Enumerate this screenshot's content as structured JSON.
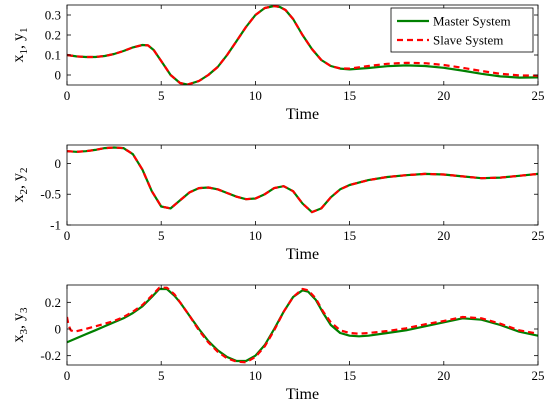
{
  "chart_data": [
    {
      "type": "line",
      "ylabel_parts": [
        "x",
        "1",
        ", y",
        "1"
      ],
      "xlabel": "Time",
      "xlim": [
        0,
        25
      ],
      "ylim": [
        -0.05,
        0.35
      ],
      "xticks": [
        0,
        5,
        10,
        15,
        20,
        25
      ],
      "yticks": [
        0,
        0.1,
        0.2,
        0.3
      ],
      "ytick_labels": [
        "0",
        "0.1",
        "0.2",
        "0.3"
      ],
      "legend": {
        "placement": "top-right"
      },
      "series": [
        {
          "name": "Master System",
          "color": "#008000",
          "style": "solid",
          "x": [
            0,
            0.5,
            1,
            1.5,
            2,
            2.5,
            3,
            3.5,
            4,
            4.3,
            4.6,
            5,
            5.5,
            6,
            6.4,
            7,
            7.5,
            8,
            8.5,
            9,
            9.5,
            10,
            10.5,
            11,
            11.3,
            11.6,
            12,
            12.5,
            13,
            13.5,
            14,
            14.5,
            15,
            16,
            17,
            18,
            19,
            20,
            21,
            22,
            23,
            24,
            25
          ],
          "y": [
            0.1,
            0.093,
            0.09,
            0.09,
            0.095,
            0.105,
            0.12,
            0.138,
            0.15,
            0.148,
            0.125,
            0.07,
            0.0,
            -0.04,
            -0.048,
            -0.03,
            0.0,
            0.04,
            0.1,
            0.17,
            0.24,
            0.3,
            0.335,
            0.345,
            0.34,
            0.325,
            0.28,
            0.2,
            0.13,
            0.075,
            0.045,
            0.032,
            0.028,
            0.035,
            0.044,
            0.048,
            0.045,
            0.036,
            0.022,
            0.006,
            -0.007,
            -0.013,
            -0.012
          ]
        },
        {
          "name": "Slave System",
          "color": "#ff0000",
          "style": "dashed",
          "x": [
            0,
            0.5,
            1,
            1.5,
            2,
            2.5,
            3,
            3.5,
            4,
            4.3,
            4.6,
            5,
            5.5,
            6,
            6.4,
            7,
            7.5,
            8,
            8.5,
            9,
            9.5,
            10,
            10.5,
            11,
            11.3,
            11.6,
            12,
            12.5,
            13,
            13.5,
            14,
            14.5,
            15,
            16,
            17,
            18,
            19,
            20,
            21,
            22,
            23,
            24,
            25
          ],
          "y": [
            0.1,
            0.093,
            0.09,
            0.09,
            0.095,
            0.105,
            0.12,
            0.138,
            0.15,
            0.148,
            0.125,
            0.07,
            0.0,
            -0.04,
            -0.048,
            -0.03,
            0.0,
            0.04,
            0.1,
            0.17,
            0.24,
            0.3,
            0.335,
            0.345,
            0.34,
            0.325,
            0.28,
            0.2,
            0.13,
            0.075,
            0.045,
            0.033,
            0.032,
            0.045,
            0.056,
            0.061,
            0.059,
            0.05,
            0.036,
            0.02,
            0.006,
            -0.002,
            -0.003
          ]
        }
      ]
    },
    {
      "type": "line",
      "ylabel_parts": [
        "x",
        "2",
        ", y",
        "2"
      ],
      "xlabel": "Time",
      "xlim": [
        0,
        25
      ],
      "ylim": [
        -1,
        0.3
      ],
      "xticks": [
        0,
        5,
        10,
        15,
        20,
        25
      ],
      "yticks": [
        -1,
        -0.5,
        0
      ],
      "ytick_labels": [
        "-1",
        "-0.5",
        "0"
      ],
      "series": [
        {
          "name": "Master System",
          "color": "#008000",
          "style": "solid",
          "x": [
            0,
            0.5,
            1,
            1.5,
            2,
            2.5,
            3,
            3.5,
            4,
            4.5,
            5,
            5.5,
            6,
            6.5,
            7,
            7.5,
            8,
            8.5,
            9,
            9.5,
            10,
            10.5,
            11,
            11.5,
            12,
            12.5,
            13,
            13.5,
            14,
            14.5,
            15,
            16,
            17,
            18,
            19,
            20,
            21,
            22,
            23,
            24,
            25
          ],
          "y": [
            0.2,
            0.19,
            0.2,
            0.22,
            0.25,
            0.26,
            0.25,
            0.15,
            -0.1,
            -0.45,
            -0.7,
            -0.73,
            -0.6,
            -0.47,
            -0.4,
            -0.39,
            -0.42,
            -0.48,
            -0.54,
            -0.58,
            -0.57,
            -0.5,
            -0.4,
            -0.37,
            -0.45,
            -0.65,
            -0.79,
            -0.73,
            -0.55,
            -0.42,
            -0.35,
            -0.27,
            -0.22,
            -0.19,
            -0.17,
            -0.18,
            -0.21,
            -0.24,
            -0.23,
            -0.2,
            -0.17
          ]
        },
        {
          "name": "Slave System",
          "color": "#ff0000",
          "style": "dashed",
          "x": [
            0,
            0.5,
            1,
            1.5,
            2,
            2.5,
            3,
            3.5,
            4,
            4.5,
            5,
            5.5,
            6,
            6.5,
            7,
            7.5,
            8,
            8.5,
            9,
            9.5,
            10,
            10.5,
            11,
            11.5,
            12,
            12.5,
            13,
            13.5,
            14,
            14.5,
            15,
            16,
            17,
            18,
            19,
            20,
            21,
            22,
            23,
            24,
            25
          ],
          "y": [
            0.2,
            0.19,
            0.2,
            0.22,
            0.25,
            0.26,
            0.25,
            0.15,
            -0.1,
            -0.45,
            -0.7,
            -0.73,
            -0.6,
            -0.47,
            -0.4,
            -0.39,
            -0.42,
            -0.48,
            -0.54,
            -0.58,
            -0.57,
            -0.5,
            -0.4,
            -0.37,
            -0.45,
            -0.65,
            -0.79,
            -0.73,
            -0.55,
            -0.42,
            -0.35,
            -0.27,
            -0.22,
            -0.19,
            -0.17,
            -0.18,
            -0.21,
            -0.24,
            -0.23,
            -0.2,
            -0.17
          ]
        }
      ]
    },
    {
      "type": "line",
      "ylabel_parts": [
        "x",
        "3",
        ", y",
        "3"
      ],
      "xlabel": "Time",
      "xlim": [
        0,
        25
      ],
      "ylim": [
        -0.27,
        0.33
      ],
      "xticks": [
        0,
        5,
        10,
        15,
        20,
        25
      ],
      "yticks": [
        -0.2,
        0,
        0.2
      ],
      "ytick_labels": [
        "-0.2",
        "0",
        "0.2"
      ],
      "series": [
        {
          "name": "Master System",
          "color": "#008000",
          "style": "solid",
          "x": [
            0,
            0.5,
            1,
            1.5,
            2,
            2.5,
            3,
            3.5,
            4,
            4.5,
            4.9,
            5.3,
            5.7,
            6,
            6.5,
            7,
            7.5,
            8,
            8.5,
            9,
            9.5,
            10,
            10.5,
            11,
            11.5,
            12,
            12.5,
            12.8,
            13.2,
            13.6,
            14,
            14.5,
            15,
            15.5,
            16,
            17,
            18,
            19,
            20,
            21,
            22,
            23,
            24,
            25
          ],
          "y": [
            -0.1,
            -0.07,
            -0.04,
            -0.01,
            0.02,
            0.05,
            0.08,
            0.12,
            0.17,
            0.24,
            0.3,
            0.3,
            0.25,
            0.2,
            0.1,
            0.0,
            -0.09,
            -0.16,
            -0.21,
            -0.24,
            -0.24,
            -0.2,
            -0.12,
            0.0,
            0.13,
            0.24,
            0.29,
            0.28,
            0.22,
            0.12,
            0.03,
            -0.03,
            -0.05,
            -0.055,
            -0.05,
            -0.03,
            -0.01,
            0.02,
            0.05,
            0.08,
            0.07,
            0.03,
            -0.02,
            -0.05
          ]
        },
        {
          "name": "Slave System",
          "color": "#ff0000",
          "style": "dashed",
          "x": [
            0,
            0.08,
            0.2,
            0.4,
            0.7,
            1,
            1.5,
            2,
            2.5,
            3,
            3.5,
            4,
            4.5,
            4.9,
            5.3,
            5.7,
            6,
            6.5,
            7,
            7.5,
            8,
            8.5,
            9,
            9.5,
            10,
            10.5,
            11,
            11.5,
            12,
            12.5,
            12.8,
            13.2,
            13.6,
            14,
            14.5,
            15,
            15.5,
            16,
            17,
            18,
            19,
            20,
            21,
            22,
            23,
            24,
            25
          ],
          "y": [
            0.09,
            0.03,
            -0.01,
            -0.02,
            -0.01,
            0.0,
            0.02,
            0.04,
            0.06,
            0.09,
            0.13,
            0.18,
            0.25,
            0.31,
            0.31,
            0.26,
            0.2,
            0.1,
            -0.01,
            -0.1,
            -0.17,
            -0.22,
            -0.245,
            -0.25,
            -0.21,
            -0.13,
            -0.01,
            0.13,
            0.24,
            0.3,
            0.29,
            0.23,
            0.13,
            0.05,
            -0.01,
            -0.03,
            -0.035,
            -0.03,
            -0.015,
            0.005,
            0.035,
            0.06,
            0.09,
            0.08,
            0.04,
            -0.01,
            -0.035
          ]
        }
      ]
    }
  ]
}
